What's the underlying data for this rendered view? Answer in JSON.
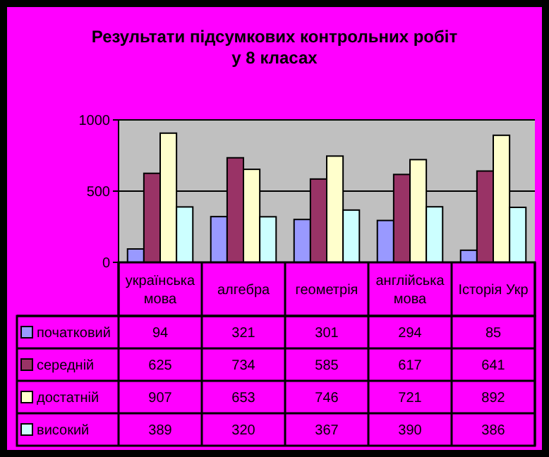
{
  "chart_data": {
    "type": "bar",
    "title": "Результати  підсумкових контрольних робіт\nу 8 класах",
    "categories": [
      "українська мова",
      "алгебра",
      "геометрія",
      "англійська мова",
      "Історія Укр"
    ],
    "series": [
      {
        "name": "початковий",
        "color": "#9999ff",
        "values": [
          94,
          321,
          301,
          294,
          85
        ]
      },
      {
        "name": "середній",
        "color": "#993366",
        "values": [
          625,
          734,
          585,
          617,
          641
        ]
      },
      {
        "name": "достатній",
        "color": "#ffffcc",
        "values": [
          907,
          653,
          746,
          721,
          892
        ]
      },
      {
        "name": "високий",
        "color": "#ccffff",
        "values": [
          389,
          320,
          367,
          390,
          386
        ]
      }
    ],
    "ylim": [
      0,
      1000
    ],
    "yticks": [
      0,
      500,
      1000
    ],
    "grid": "y",
    "legend": "bottom",
    "data_labels": true
  }
}
